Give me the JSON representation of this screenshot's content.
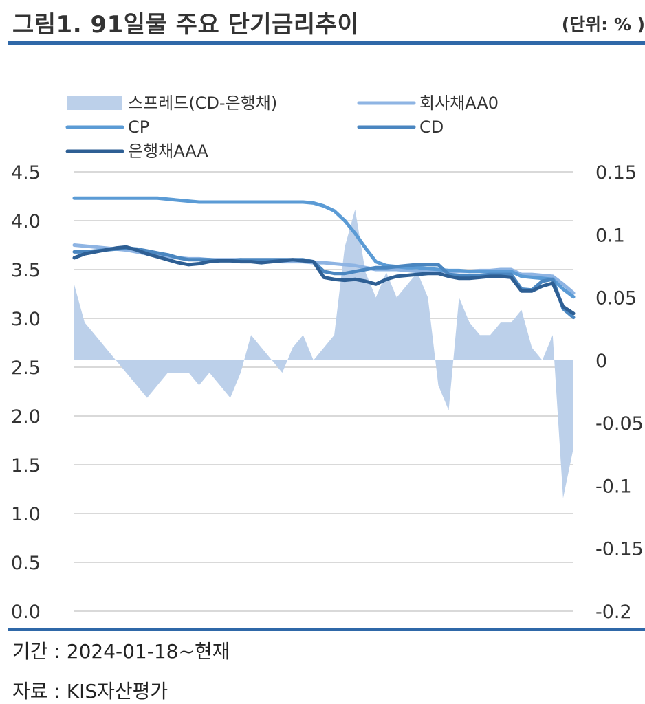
{
  "header": {
    "title": "그림1. 91일물 주요 단기금리추이",
    "unit": "(단위: % )"
  },
  "footer": {
    "period": "기간 : 2024-01-18~현재",
    "source": "자료 : KIS자산평가"
  },
  "colors": {
    "spread": "#bcd0ea",
    "corp_aa0": "#8eb4e3",
    "cp": "#5b9bd5",
    "cd": "#4a86c0",
    "bank_aaa": "#2e5f94",
    "rule": "#2f68a8",
    "grid": "#d9d9d9"
  },
  "chart_data": {
    "type": "line",
    "left_axis": {
      "ylim": [
        0,
        4.5
      ],
      "ticks": [
        "0.0",
        "0.5",
        "1.0",
        "1.5",
        "2.0",
        "2.5",
        "3.0",
        "3.5",
        "4.0",
        "4.5"
      ]
    },
    "right_axis": {
      "ylim": [
        -0.2,
        0.15
      ],
      "ticks": [
        "-0.2",
        "-0.15",
        "-0.1",
        "-0.05",
        "0",
        "0.05",
        "0.1",
        "0.15"
      ]
    },
    "grid": true,
    "legend": {
      "placement": "top"
    },
    "x_points": 49,
    "series": [
      {
        "name": "스프레드(CD-은행채)",
        "kind": "area",
        "axis": "right",
        "color": "#bcd0ea",
        "values": [
          0.06,
          0.03,
          0.02,
          0.01,
          0,
          -0.01,
          -0.02,
          -0.03,
          -0.02,
          -0.01,
          -0.01,
          -0.01,
          -0.02,
          -0.01,
          -0.02,
          -0.03,
          -0.01,
          0.02,
          0.01,
          0,
          -0.01,
          0.01,
          0.02,
          0,
          0.01,
          0.02,
          0.09,
          0.12,
          0.07,
          0.05,
          0.07,
          0.05,
          0.06,
          0.07,
          0.05,
          -0.02,
          -0.04,
          0.05,
          0.03,
          0.02,
          0.02,
          0.03,
          0.03,
          0.04,
          0.01,
          0,
          0.02,
          -0.11,
          -0.07
        ]
      },
      {
        "name": "회사채AA0",
        "kind": "line",
        "axis": "left",
        "color": "#8eb4e3",
        "values": [
          3.75,
          3.74,
          3.73,
          3.72,
          3.71,
          3.7,
          3.68,
          3.66,
          3.65,
          3.63,
          3.62,
          3.61,
          3.61,
          3.6,
          3.6,
          3.6,
          3.6,
          3.59,
          3.59,
          3.59,
          3.58,
          3.58,
          3.58,
          3.57,
          3.57,
          3.56,
          3.55,
          3.54,
          3.52,
          3.5,
          3.5,
          3.5,
          3.49,
          3.48,
          3.48,
          3.48,
          3.48,
          3.48,
          3.48,
          3.49,
          3.49,
          3.5,
          3.5,
          3.45,
          3.45,
          3.44,
          3.43,
          3.35,
          3.26
        ]
      },
      {
        "name": "CP",
        "kind": "line",
        "axis": "left",
        "color": "#5b9bd5",
        "values": [
          4.23,
          4.23,
          4.23,
          4.23,
          4.23,
          4.23,
          4.23,
          4.23,
          4.23,
          4.22,
          4.21,
          4.2,
          4.19,
          4.19,
          4.19,
          4.19,
          4.19,
          4.19,
          4.19,
          4.19,
          4.19,
          4.19,
          4.19,
          4.18,
          4.15,
          4.1,
          4.0,
          3.87,
          3.72,
          3.58,
          3.54,
          3.53,
          3.52,
          3.52,
          3.51,
          3.5,
          3.49,
          3.49,
          3.48,
          3.48,
          3.48,
          3.48,
          3.48,
          3.43,
          3.42,
          3.41,
          3.4,
          3.3,
          3.22
        ]
      },
      {
        "name": "CD",
        "kind": "line",
        "axis": "left",
        "color": "#4a86c0",
        "values": [
          3.68,
          3.68,
          3.69,
          3.7,
          3.71,
          3.72,
          3.71,
          3.69,
          3.67,
          3.65,
          3.62,
          3.6,
          3.6,
          3.6,
          3.59,
          3.59,
          3.6,
          3.6,
          3.6,
          3.6,
          3.6,
          3.6,
          3.6,
          3.58,
          3.48,
          3.46,
          3.46,
          3.48,
          3.5,
          3.52,
          3.52,
          3.53,
          3.54,
          3.55,
          3.55,
          3.55,
          3.45,
          3.44,
          3.44,
          3.44,
          3.45,
          3.45,
          3.45,
          3.3,
          3.29,
          3.38,
          3.4,
          3.1,
          3.01
        ]
      },
      {
        "name": "은행채AAA",
        "kind": "line",
        "axis": "left",
        "color": "#2e5f94",
        "values": [
          3.62,
          3.66,
          3.68,
          3.7,
          3.72,
          3.73,
          3.7,
          3.66,
          3.63,
          3.6,
          3.57,
          3.55,
          3.56,
          3.58,
          3.59,
          3.59,
          3.58,
          3.58,
          3.57,
          3.58,
          3.59,
          3.6,
          3.59,
          3.58,
          3.42,
          3.4,
          3.39,
          3.4,
          3.38,
          3.35,
          3.4,
          3.43,
          3.44,
          3.45,
          3.46,
          3.46,
          3.43,
          3.41,
          3.41,
          3.42,
          3.43,
          3.43,
          3.42,
          3.28,
          3.28,
          3.33,
          3.36,
          3.12,
          3.05
        ]
      }
    ]
  }
}
